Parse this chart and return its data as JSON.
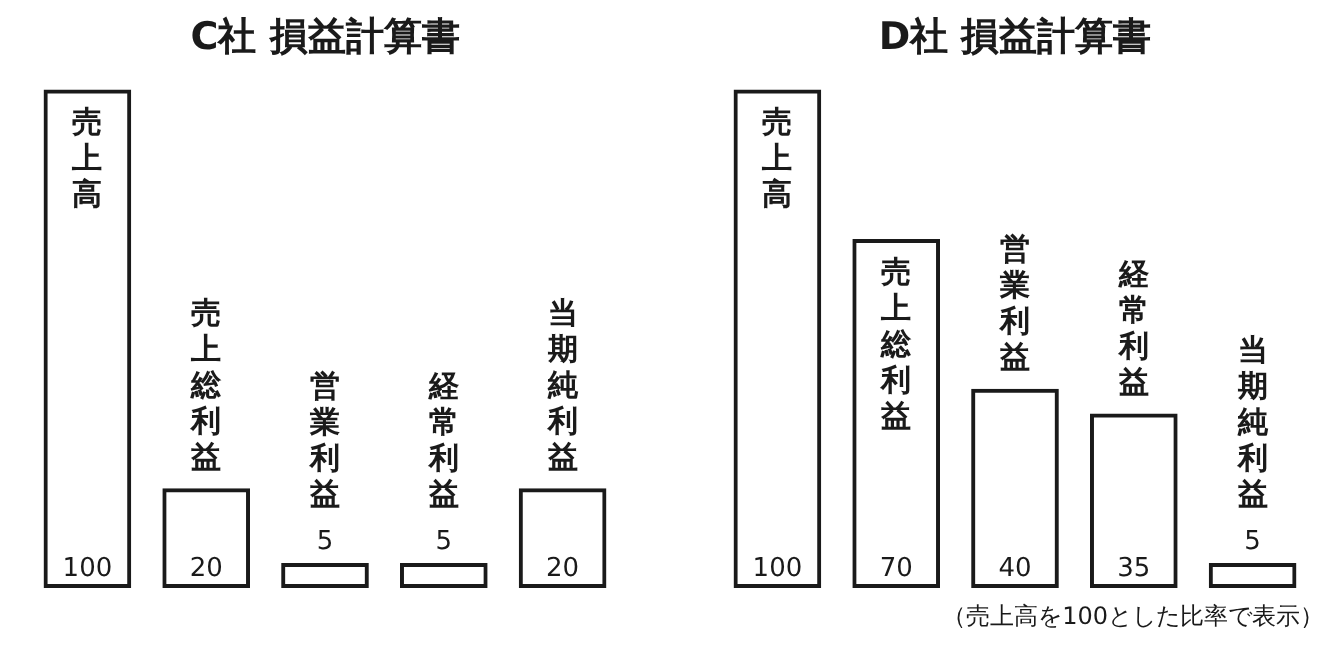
{
  "chart_data": [
    {
      "type": "bar",
      "title": "C社 損益計算書",
      "categories": [
        "売上高",
        "売上総利益",
        "営業利益",
        "経常利益",
        "当期純利益"
      ],
      "series": [
        {
          "color": "#1a1a1a",
          "values": [
            100,
            20,
            5,
            5,
            20
          ]
        }
      ],
      "data_labels": true,
      "tick_labels": false
    },
    {
      "type": "bar",
      "title": "D社 損益計算書",
      "categories": [
        "売上高",
        "売上総利益",
        "営業利益",
        "経常利益",
        "当期純利益"
      ],
      "series": [
        {
          "color": "#1a1a1a",
          "values": [
            100,
            70,
            40,
            35,
            5
          ]
        }
      ],
      "data_labels": true,
      "tick_labels": false,
      "annotations": [
        "（売上高を100とした比率で表示）"
      ]
    }
  ]
}
